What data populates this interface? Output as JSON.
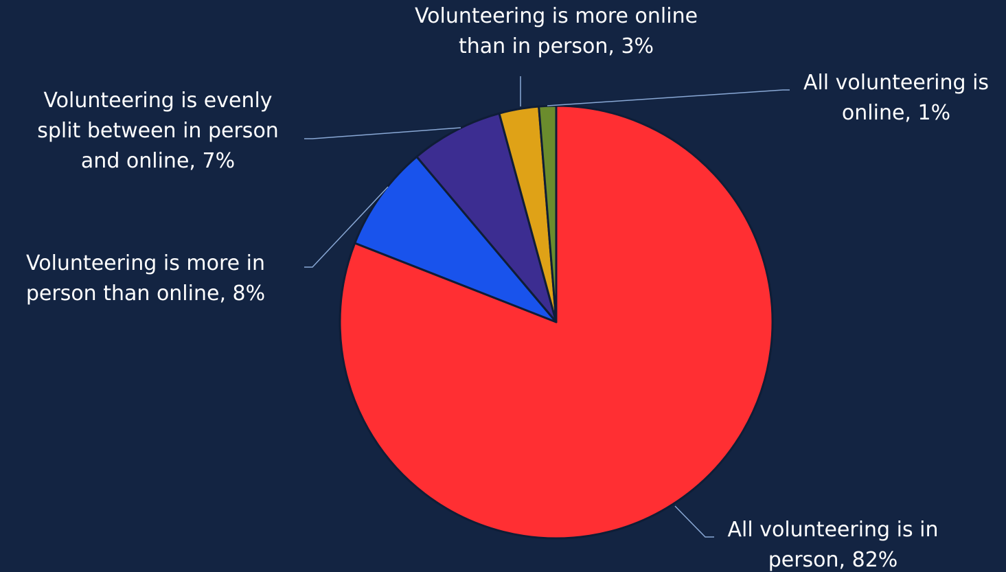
{
  "chart_data": {
    "type": "pie",
    "start": "12 o'clock",
    "direction": "clockwise",
    "background": "#132442",
    "slices": [
      {
        "lines": [
          "All volunteering is in",
          "person, 82%"
        ],
        "value": 82,
        "color": "#ff2f33"
      },
      {
        "lines": [
          "Volunteering is more in",
          "person than online, 8%"
        ],
        "value": 8,
        "color": "#1953ec"
      },
      {
        "lines": [
          "Volunteering is evenly",
          "split between in person",
          "and online, 7%"
        ],
        "value": 7,
        "color": "#3c2d91"
      },
      {
        "lines": [
          "Volunteering is more online",
          "than in person, 3%"
        ],
        "value": 3,
        "color": "#dfa217"
      },
      {
        "lines": [
          "All volunteering is",
          "online, 1%"
        ],
        "value": 1.3,
        "color": "#6b8c2d"
      }
    ]
  }
}
